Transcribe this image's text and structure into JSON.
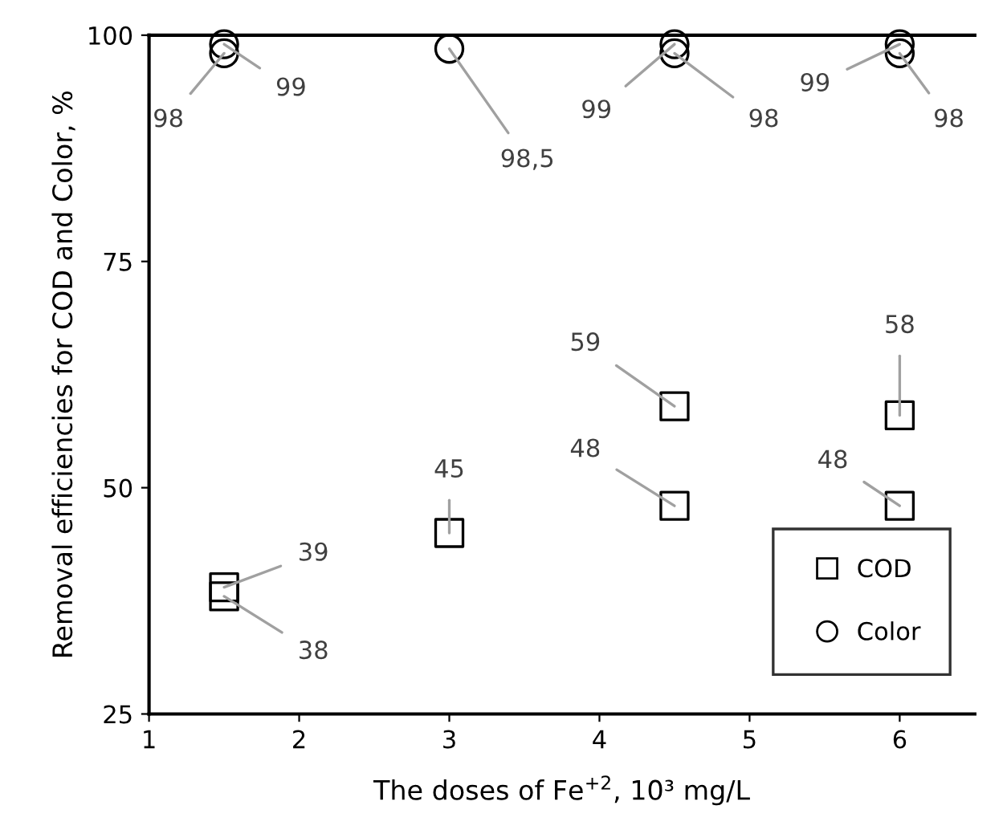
{
  "chart_data": {
    "type": "scatter",
    "xlabel": "The doses of Fe$^{+2}$, 10³ mg/L",
    "ylabel": "Removal efficiencies for COD and Color, %",
    "xlim": [
      1,
      6.5
    ],
    "xticks": [
      1,
      2,
      3,
      4,
      5,
      6
    ],
    "ylim": [
      25,
      100
    ],
    "yticks": [
      25,
      50,
      75,
      100
    ],
    "grid": false,
    "legend": "bottom right",
    "series": [
      {
        "name": "COD",
        "color": "#000000",
        "marker": "square",
        "x": [
          1.5,
          1.5,
          3,
          4.5,
          4.5,
          6,
          6
        ],
        "values": [
          39,
          38,
          45,
          59,
          48,
          58,
          48
        ],
        "value_labels": [
          "39",
          "38",
          "45",
          "59",
          "48",
          "58",
          "48"
        ]
      },
      {
        "name": "Color",
        "color": "#000000",
        "marker": "circle",
        "x": [
          1.5,
          1.5,
          3,
          4.5,
          4.5,
          6,
          6
        ],
        "values": [
          98,
          99,
          98.5,
          99,
          98,
          99,
          98
        ],
        "value_labels": [
          "98",
          "99",
          "98,5",
          "99",
          "98",
          "99",
          "98"
        ]
      }
    ]
  }
}
